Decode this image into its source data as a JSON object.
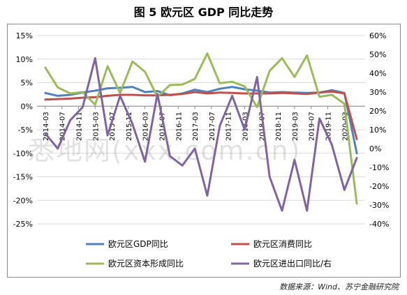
{
  "figure": {
    "title": "图 5  欧元区 GDP 同比走势",
    "source": "数据来源：Wind、苏宁金融研究院",
    "watermark": "悉地网(xxx.com.cn)"
  },
  "chart_data": {
    "type": "line",
    "title": "",
    "xlabel": "",
    "ylabel": "",
    "y2label": "",
    "ylim": [
      -0.25,
      0.15
    ],
    "y_ticks": [
      "15%",
      "10%",
      "5%",
      "0%",
      "-5%",
      "-10%",
      "-15%",
      "-20%",
      "-25%"
    ],
    "y2lim": [
      -0.4,
      0.6
    ],
    "y2_ticks": [
      "60%",
      "50%",
      "40%",
      "30%",
      "20%",
      "10%",
      "0%",
      "-10%",
      "-20%",
      "-30%",
      "-40%"
    ],
    "x_tick_labels": [
      "2014-03",
      "2014-07",
      "2014-11",
      "2015-03",
      "2015-07",
      "2015-11",
      "2016-03",
      "2016-07",
      "2016-11",
      "2017-03",
      "2017-07",
      "2017-11",
      "2018-03",
      "2018-07",
      "2018-11",
      "2019-03",
      "2019-07",
      "2019-11",
      "2020-03"
    ],
    "x": [
      "2014-03",
      "2014-06",
      "2014-09",
      "2014-12",
      "2015-03",
      "2015-06",
      "2015-09",
      "2015-12",
      "2016-03",
      "2016-06",
      "2016-09",
      "2016-12",
      "2017-03",
      "2017-06",
      "2017-09",
      "2017-12",
      "2018-03",
      "2018-06",
      "2018-09",
      "2018-12",
      "2019-03",
      "2019-06",
      "2019-09",
      "2019-12",
      "2020-03",
      "2020-06"
    ],
    "grid": true,
    "legend_position": "bottom",
    "series": [
      {
        "name": "欧元区GDP同比",
        "axis": "left",
        "color": "#4f81bd",
        "values": [
          0.028,
          0.022,
          0.024,
          0.029,
          0.033,
          0.038,
          0.039,
          0.041,
          0.03,
          0.032,
          0.023,
          0.027,
          0.035,
          0.03,
          0.037,
          0.041,
          0.036,
          0.033,
          0.029,
          0.03,
          0.029,
          0.028,
          0.029,
          0.034,
          0.028,
          -0.1
        ]
      },
      {
        "name": "欧元区消费同比",
        "axis": "left",
        "color": "#c0504d",
        "values": [
          0.014,
          0.015,
          0.016,
          0.018,
          0.019,
          0.022,
          0.024,
          0.024,
          0.023,
          0.023,
          0.024,
          0.026,
          0.03,
          0.027,
          0.029,
          0.028,
          0.027,
          0.027,
          0.027,
          0.028,
          0.027,
          0.026,
          0.029,
          0.031,
          0.027,
          -0.07
        ]
      },
      {
        "name": "欧元区资本形成同比",
        "axis": "left",
        "color": "#9bbb59",
        "values": [
          0.082,
          0.04,
          0.027,
          0.03,
          0.003,
          0.085,
          0.028,
          0.095,
          0.073,
          0.02,
          0.045,
          0.046,
          0.058,
          0.112,
          0.049,
          0.052,
          0.042,
          -0.002,
          0.075,
          0.102,
          0.062,
          0.108,
          0.02,
          0.024,
          0.005,
          -0.207
        ]
      },
      {
        "name": "欧元区进出口同比/右",
        "axis": "right",
        "color": "#8064a2",
        "values": [
          0.08,
          0.0,
          0.15,
          0.22,
          0.48,
          0.07,
          0.28,
          0.13,
          -0.07,
          0.29,
          -0.04,
          -0.09,
          0.0,
          -0.25,
          0.12,
          0.28,
          0.1,
          0.38,
          -0.15,
          -0.33,
          -0.06,
          -0.33,
          0.16,
          0.02,
          -0.22,
          -0.05
        ]
      }
    ]
  }
}
